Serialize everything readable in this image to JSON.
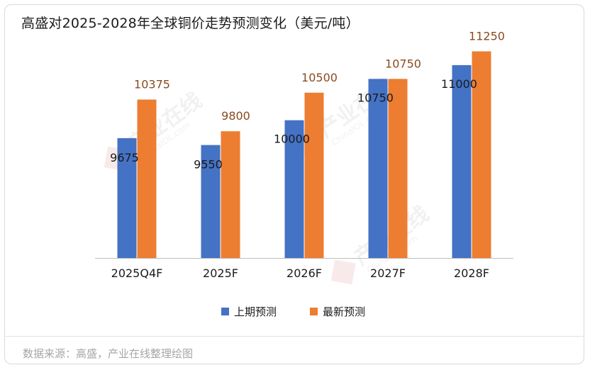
{
  "title": "高盛对2025-2028年全球铜价走势预测变化（美元/吨）",
  "source": "数据来源：高盛，产业在线整理绘图",
  "watermark": {
    "text": "产业在线",
    "sub": "ChinaIOL.com"
  },
  "chart_data": {
    "type": "bar",
    "title": "高盛对2025-2028年全球铜价走势预测变化（美元/吨）",
    "categories": [
      "2025Q4F",
      "2025F",
      "2026F",
      "2027F",
      "2028F"
    ],
    "series": [
      {
        "name": "上期预测",
        "values": [
          9675,
          9550,
          10000,
          10750,
          11000
        ],
        "color": "#4472c4"
      },
      {
        "name": "最新预测",
        "values": [
          10375,
          9800,
          10500,
          10750,
          11250
        ],
        "color": "#ed7d31"
      }
    ],
    "ylim": [
      7500,
      11500
    ],
    "xlabel": "",
    "ylabel": "",
    "grid": false,
    "legend": "bottom"
  },
  "colors": {
    "prev_label": "#1a1a1a",
    "new_label": "#8a4a1f",
    "axis": "#bfbfbf"
  }
}
